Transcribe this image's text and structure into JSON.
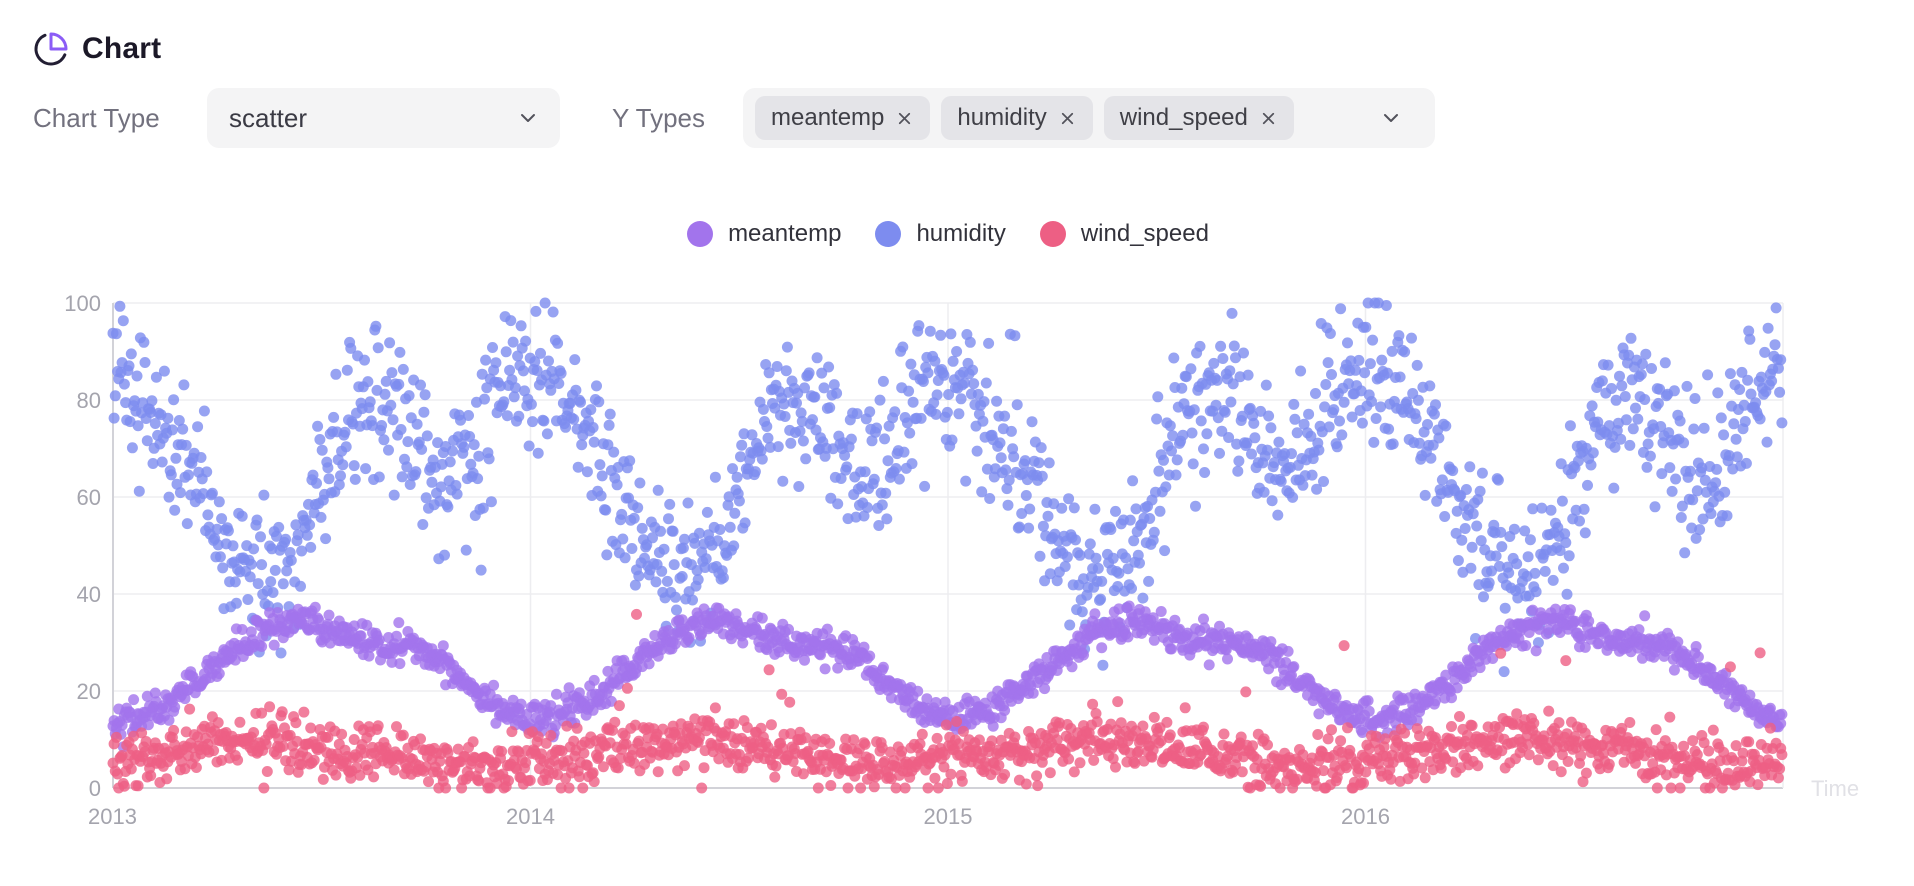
{
  "header": {
    "title": "Chart"
  },
  "controls": {
    "chart_type_label": "Chart Type",
    "chart_type_value": "scatter",
    "y_types_label": "Y Types",
    "y_types": [
      "meantemp",
      "humidity",
      "wind_speed"
    ]
  },
  "colors": {
    "accent": "#8b5cf6",
    "icon_dark": "#221e33",
    "control_bg": "#f4f4f5",
    "tag_bg": "#e4e4e8",
    "grid": "#ededf0",
    "axis": "#d2d2d8",
    "tick_label": "#a4a4ad",
    "time_label": "#e1e1e6"
  },
  "chart_data": {
    "type": "scatter",
    "title": "",
    "xlabel": "Time",
    "ylabel": "",
    "x_ticks": [
      "2013",
      "2014",
      "2015",
      "2016"
    ],
    "x_domain": [
      2013,
      2017
    ],
    "y_ticks": [
      0,
      20,
      40,
      60,
      80,
      100
    ],
    "ylim": [
      0,
      100
    ],
    "grid": true,
    "legend_position": "top-center",
    "sampling": "daily",
    "points_per_series": 1461,
    "point_radius": 5.5,
    "point_opacity": 0.8,
    "seed": 42,
    "series": [
      {
        "name": "meantemp",
        "color": "#a274ec",
        "monthly_means": [
          13.8,
          17.0,
          22.5,
          28.5,
          33.0,
          34.5,
          31.5,
          30.0,
          29.5,
          26.0,
          20.0,
          15.0
        ],
        "spread": 1.7,
        "range": [
          6,
          38.5
        ]
      },
      {
        "name": "humidity",
        "color": "#7d8cef",
        "monthly_means": [
          84,
          74,
          62,
          47,
          42,
          51,
          72,
          80,
          76,
          64,
          72,
          85
        ],
        "spread": 7.5,
        "range": [
          24,
          100
        ]
      },
      {
        "name": "wind_speed",
        "color": "#ed5f84",
        "monthly_means": [
          5.5,
          7.0,
          8.5,
          9.5,
          10.0,
          9.5,
          8.5,
          7.5,
          6.5,
          4.5,
          4.0,
          5.0
        ],
        "spread": 3.0,
        "range": [
          0,
          42
        ],
        "outliers": {
          "probability": 0.007,
          "min": 16,
          "max": 40
        }
      }
    ]
  }
}
